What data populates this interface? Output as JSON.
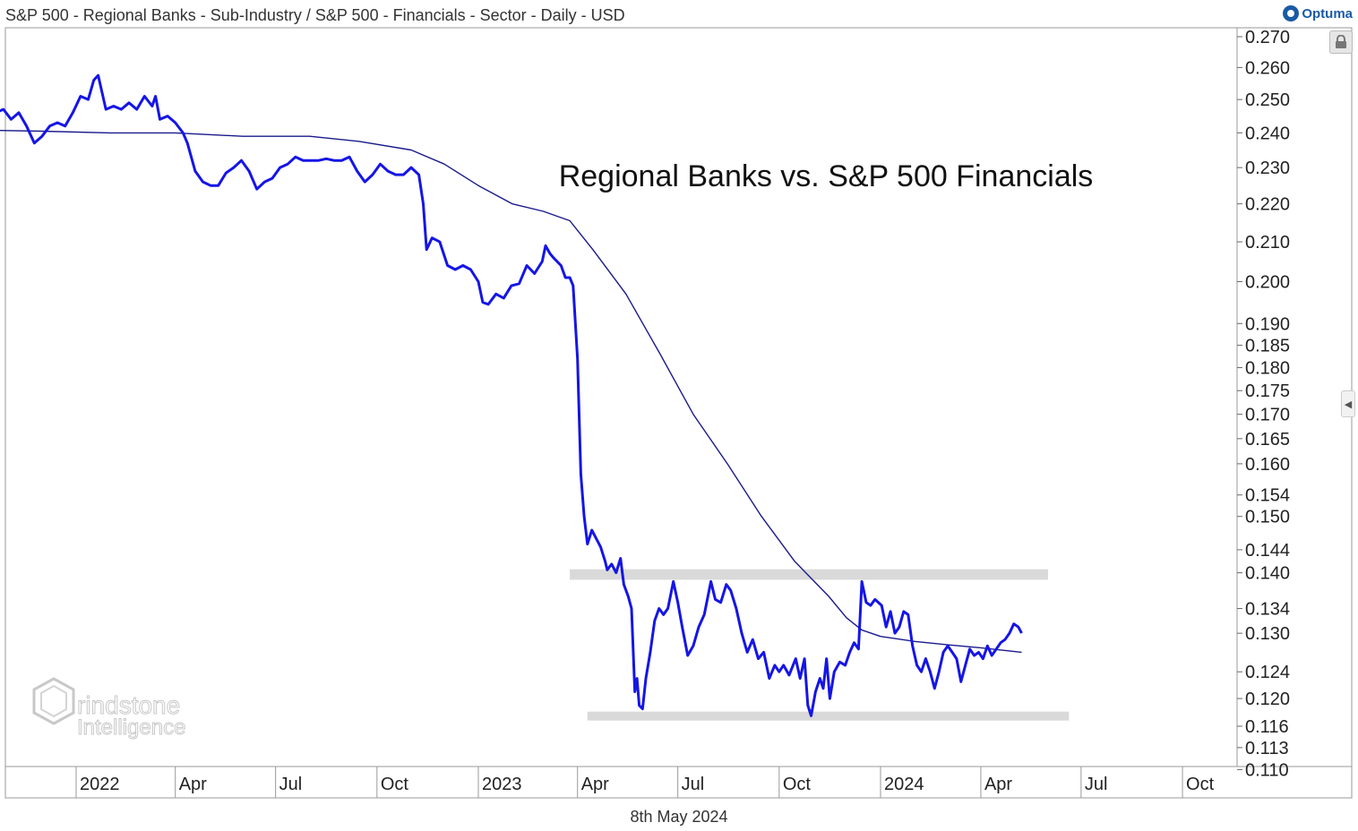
{
  "header": {
    "title": "S&P 500 - Regional Banks - Sub-Industry / S&P 500 - Financials - Sector - Daily - USD",
    "brand": "Optuma"
  },
  "footer": {
    "date": "8th May 2024"
  },
  "watermark": {
    "line1": "rindstone",
    "line2": "Intelligence"
  },
  "icons": {
    "lock": "lock-icon",
    "expand": "chevron-left-icon",
    "brand": "optuma-logo-icon",
    "watermark": "grindstone-hexagon-logo"
  },
  "colors": {
    "price": "#1515e6",
    "moving_average": "#1a1a8c",
    "zone": "#d9d9d9"
  },
  "chart_data": {
    "type": "line",
    "title": "Regional Banks vs. S&P 500 Financials",
    "y_scale": "log",
    "ylim": [
      0.11,
      0.272
    ],
    "xlim": [
      "2021-09-01",
      "2024-12-31"
    ],
    "x_ticks": [
      {
        "date": "2022-01-01",
        "label": "2022"
      },
      {
        "date": "2022-04-01",
        "label": "Apr"
      },
      {
        "date": "2022-07-01",
        "label": "Jul"
      },
      {
        "date": "2022-10-01",
        "label": "Oct"
      },
      {
        "date": "2023-01-01",
        "label": "2023"
      },
      {
        "date": "2023-04-01",
        "label": "Apr"
      },
      {
        "date": "2023-07-01",
        "label": "Jul"
      },
      {
        "date": "2023-10-01",
        "label": "Oct"
      },
      {
        "date": "2024-01-01",
        "label": "2024"
      },
      {
        "date": "2024-04-01",
        "label": "Apr"
      },
      {
        "date": "2024-07-01",
        "label": "Jul"
      },
      {
        "date": "2024-10-01",
        "label": "Oct"
      }
    ],
    "y_ticks": [
      {
        "value": 0.27,
        "label": "0.270"
      },
      {
        "value": 0.26,
        "label": "0.260"
      },
      {
        "value": 0.25,
        "label": "0.250"
      },
      {
        "value": 0.24,
        "label": "0.240"
      },
      {
        "value": 0.23,
        "label": "0.230"
      },
      {
        "value": 0.22,
        "label": "0.220"
      },
      {
        "value": 0.21,
        "label": "0.210"
      },
      {
        "value": 0.2,
        "label": "0.200"
      },
      {
        "value": 0.19,
        "label": "0.190"
      },
      {
        "value": 0.185,
        "label": "0.185"
      },
      {
        "value": 0.18,
        "label": "0.180"
      },
      {
        "value": 0.175,
        "label": "0.175"
      },
      {
        "value": 0.17,
        "label": "0.170"
      },
      {
        "value": 0.165,
        "label": "0.165"
      },
      {
        "value": 0.16,
        "label": "0.160"
      },
      {
        "value": 0.154,
        "label": "0.154"
      },
      {
        "value": 0.15,
        "label": "0.150"
      },
      {
        "value": 0.144,
        "label": "0.144"
      },
      {
        "value": 0.14,
        "label": "0.140"
      },
      {
        "value": 0.134,
        "label": "0.134"
      },
      {
        "value": 0.13,
        "label": "0.130"
      },
      {
        "value": 0.124,
        "label": "0.124"
      },
      {
        "value": 0.12,
        "label": "0.120"
      },
      {
        "value": 0.116,
        "label": "0.116"
      },
      {
        "value": 0.113,
        "label": "0.113"
      },
      {
        "value": 0.11,
        "label": "0.110"
      }
    ],
    "zones": [
      {
        "from": "2023-03-25",
        "to": "2024-06-01",
        "low": 0.1388,
        "high": 0.1406
      },
      {
        "from": "2023-04-10",
        "to": "2024-06-20",
        "low": 0.1169,
        "high": 0.1181
      }
    ],
    "series": [
      {
        "role": "ratio",
        "points": [
          [
            "2021-09-01",
            0.2465
          ],
          [
            "2021-09-08",
            0.248
          ],
          [
            "2021-09-15",
            0.247
          ],
          [
            "2021-09-22",
            0.249
          ],
          [
            "2021-09-29",
            0.2475
          ],
          [
            "2021-10-06",
            0.2488
          ],
          [
            "2021-10-13",
            0.248
          ],
          [
            "2021-10-20",
            0.246
          ],
          [
            "2021-10-27",
            0.247
          ],
          [
            "2021-11-03",
            0.244
          ],
          [
            "2021-11-10",
            0.246
          ],
          [
            "2021-11-17",
            0.242
          ],
          [
            "2021-11-24",
            0.237
          ],
          [
            "2021-12-01",
            0.239
          ],
          [
            "2021-12-08",
            0.242
          ],
          [
            "2021-12-15",
            0.243
          ],
          [
            "2021-12-22",
            0.242
          ],
          [
            "2021-12-29",
            0.246
          ],
          [
            "2022-01-05",
            0.251
          ],
          [
            "2022-01-12",
            0.25
          ],
          [
            "2022-01-17",
            0.256
          ],
          [
            "2022-01-21",
            0.2575
          ],
          [
            "2022-01-28",
            0.247
          ],
          [
            "2022-02-04",
            0.248
          ],
          [
            "2022-02-11",
            0.247
          ],
          [
            "2022-02-18",
            0.249
          ],
          [
            "2022-02-25",
            0.247
          ],
          [
            "2022-03-04",
            0.251
          ],
          [
            "2022-03-11",
            0.248
          ],
          [
            "2022-03-14",
            0.251
          ],
          [
            "2022-03-18",
            0.244
          ],
          [
            "2022-03-25",
            0.245
          ],
          [
            "2022-04-01",
            0.243
          ],
          [
            "2022-04-08",
            0.24
          ],
          [
            "2022-04-12",
            0.237
          ],
          [
            "2022-04-19",
            0.229
          ],
          [
            "2022-04-26",
            0.226
          ],
          [
            "2022-05-03",
            0.225
          ],
          [
            "2022-05-10",
            0.225
          ],
          [
            "2022-05-17",
            0.2285
          ],
          [
            "2022-05-24",
            0.23
          ],
          [
            "2022-05-31",
            0.232
          ],
          [
            "2022-06-07",
            0.229
          ],
          [
            "2022-06-14",
            0.224
          ],
          [
            "2022-06-21",
            0.226
          ],
          [
            "2022-06-28",
            0.227
          ],
          [
            "2022-07-05",
            0.23
          ],
          [
            "2022-07-12",
            0.231
          ],
          [
            "2022-07-19",
            0.233
          ],
          [
            "2022-07-26",
            0.232
          ],
          [
            "2022-08-02",
            0.232
          ],
          [
            "2022-08-09",
            0.232
          ],
          [
            "2022-08-16",
            0.2325
          ],
          [
            "2022-08-23",
            0.232
          ],
          [
            "2022-08-30",
            0.232
          ],
          [
            "2022-09-06",
            0.233
          ],
          [
            "2022-09-13",
            0.229
          ],
          [
            "2022-09-20",
            0.226
          ],
          [
            "2022-09-27",
            0.228
          ],
          [
            "2022-10-04",
            0.231
          ],
          [
            "2022-10-11",
            0.229
          ],
          [
            "2022-10-18",
            0.228
          ],
          [
            "2022-10-25",
            0.228
          ],
          [
            "2022-11-01",
            0.23
          ],
          [
            "2022-11-08",
            0.228
          ],
          [
            "2022-11-12",
            0.22
          ],
          [
            "2022-11-15",
            0.208
          ],
          [
            "2022-11-20",
            0.211
          ],
          [
            "2022-11-27",
            0.21
          ],
          [
            "2022-12-04",
            0.204
          ],
          [
            "2022-12-11",
            0.203
          ],
          [
            "2022-12-18",
            0.204
          ],
          [
            "2022-12-25",
            0.203
          ],
          [
            "2023-01-01",
            0.2
          ],
          [
            "2023-01-05",
            0.195
          ],
          [
            "2023-01-10",
            0.1945
          ],
          [
            "2023-01-17",
            0.197
          ],
          [
            "2023-01-24",
            0.196
          ],
          [
            "2023-01-31",
            0.199
          ],
          [
            "2023-02-07",
            0.1995
          ],
          [
            "2023-02-14",
            0.204
          ],
          [
            "2023-02-21",
            0.202
          ],
          [
            "2023-02-28",
            0.205
          ],
          [
            "2023-03-03",
            0.209
          ],
          [
            "2023-03-07",
            0.207
          ],
          [
            "2023-03-10",
            0.206
          ],
          [
            "2023-03-17",
            0.204
          ],
          [
            "2023-03-21",
            0.201
          ],
          [
            "2023-03-25",
            0.201
          ],
          [
            "2023-03-28",
            0.199
          ],
          [
            "2023-04-01",
            0.182
          ],
          [
            "2023-04-04",
            0.158
          ],
          [
            "2023-04-07",
            0.15
          ],
          [
            "2023-04-10",
            0.145
          ],
          [
            "2023-04-14",
            0.1475
          ],
          [
            "2023-04-18",
            0.146
          ],
          [
            "2023-04-22",
            0.1445
          ],
          [
            "2023-04-26",
            0.142
          ],
          [
            "2023-04-28",
            0.1405
          ],
          [
            "2023-05-02",
            0.1415
          ],
          [
            "2023-05-06",
            0.14
          ],
          [
            "2023-05-10",
            0.1425
          ],
          [
            "2023-05-13",
            0.138
          ],
          [
            "2023-05-17",
            0.136
          ],
          [
            "2023-05-20",
            0.134
          ],
          [
            "2023-05-23",
            0.121
          ],
          [
            "2023-05-25",
            0.123
          ],
          [
            "2023-05-27",
            0.119
          ],
          [
            "2023-05-30",
            0.1185
          ],
          [
            "2023-06-02",
            0.123
          ],
          [
            "2023-06-06",
            0.127
          ],
          [
            "2023-06-10",
            0.132
          ],
          [
            "2023-06-14",
            0.134
          ],
          [
            "2023-06-18",
            0.133
          ],
          [
            "2023-06-22",
            0.134
          ],
          [
            "2023-06-27",
            0.1385
          ],
          [
            "2023-07-01",
            0.135
          ],
          [
            "2023-07-05",
            0.131
          ],
          [
            "2023-07-10",
            0.1265
          ],
          [
            "2023-07-15",
            0.128
          ],
          [
            "2023-07-20",
            0.131
          ],
          [
            "2023-07-25",
            0.133
          ],
          [
            "2023-07-31",
            0.1385
          ],
          [
            "2023-08-04",
            0.1355
          ],
          [
            "2023-08-09",
            0.135
          ],
          [
            "2023-08-14",
            0.138
          ],
          [
            "2023-08-18",
            0.137
          ],
          [
            "2023-08-23",
            0.134
          ],
          [
            "2023-08-28",
            0.13
          ],
          [
            "2023-09-02",
            0.127
          ],
          [
            "2023-09-07",
            0.129
          ],
          [
            "2023-09-12",
            0.126
          ],
          [
            "2023-09-17",
            0.127
          ],
          [
            "2023-09-22",
            0.123
          ],
          [
            "2023-09-27",
            0.125
          ],
          [
            "2023-10-01",
            0.124
          ],
          [
            "2023-10-05",
            0.125
          ],
          [
            "2023-10-10",
            0.1235
          ],
          [
            "2023-10-16",
            0.126
          ],
          [
            "2023-10-20",
            0.123
          ],
          [
            "2023-10-24",
            0.126
          ],
          [
            "2023-10-27",
            0.119
          ],
          [
            "2023-10-30",
            0.1175
          ],
          [
            "2023-11-03",
            0.121
          ],
          [
            "2023-11-07",
            0.123
          ],
          [
            "2023-11-10",
            0.1215
          ],
          [
            "2023-11-13",
            0.126
          ],
          [
            "2023-11-16",
            0.12
          ],
          [
            "2023-11-20",
            0.124
          ],
          [
            "2023-11-25",
            0.1255
          ],
          [
            "2023-11-30",
            0.125
          ],
          [
            "2023-12-04",
            0.127
          ],
          [
            "2023-12-08",
            0.1285
          ],
          [
            "2023-12-12",
            0.1275
          ],
          [
            "2023-12-15",
            0.1385
          ],
          [
            "2023-12-19",
            0.135
          ],
          [
            "2023-12-23",
            0.1345
          ],
          [
            "2023-12-27",
            0.1355
          ],
          [
            "2024-01-02",
            0.1345
          ],
          [
            "2024-01-06",
            0.131
          ],
          [
            "2024-01-10",
            0.1335
          ],
          [
            "2024-01-14",
            0.13
          ],
          [
            "2024-01-18",
            0.131
          ],
          [
            "2024-01-22",
            0.1335
          ],
          [
            "2024-01-26",
            0.133
          ],
          [
            "2024-01-30",
            0.128
          ],
          [
            "2024-02-03",
            0.125
          ],
          [
            "2024-02-07",
            0.124
          ],
          [
            "2024-02-11",
            0.126
          ],
          [
            "2024-02-15",
            0.124
          ],
          [
            "2024-02-19",
            0.1215
          ],
          [
            "2024-02-23",
            0.124
          ],
          [
            "2024-02-27",
            0.127
          ],
          [
            "2024-03-02",
            0.128
          ],
          [
            "2024-03-06",
            0.127
          ],
          [
            "2024-03-10",
            0.126
          ],
          [
            "2024-03-14",
            0.1225
          ],
          [
            "2024-03-18",
            0.125
          ],
          [
            "2024-03-22",
            0.1275
          ],
          [
            "2024-03-26",
            0.1265
          ],
          [
            "2024-03-30",
            0.127
          ],
          [
            "2024-04-03",
            0.126
          ],
          [
            "2024-04-07",
            0.128
          ],
          [
            "2024-04-11",
            0.1265
          ],
          [
            "2024-04-15",
            0.1275
          ],
          [
            "2024-04-19",
            0.1285
          ],
          [
            "2024-04-23",
            0.129
          ],
          [
            "2024-04-27",
            0.13
          ],
          [
            "2024-05-01",
            0.1315
          ],
          [
            "2024-05-05",
            0.131
          ],
          [
            "2024-05-08",
            0.13
          ]
        ]
      },
      {
        "role": "moving-average",
        "points": [
          [
            "2021-09-01",
            0.241
          ],
          [
            "2021-12-01",
            0.2405
          ],
          [
            "2022-02-01",
            0.24
          ],
          [
            "2022-04-01",
            0.24
          ],
          [
            "2022-06-01",
            0.239
          ],
          [
            "2022-08-01",
            0.239
          ],
          [
            "2022-09-15",
            0.2375
          ],
          [
            "2022-11-01",
            0.235
          ],
          [
            "2022-12-01",
            0.231
          ],
          [
            "2023-01-01",
            0.225
          ],
          [
            "2023-02-01",
            0.22
          ],
          [
            "2023-03-01",
            0.218
          ],
          [
            "2023-03-25",
            0.2155
          ],
          [
            "2023-04-15",
            0.208
          ],
          [
            "2023-05-15",
            0.197
          ],
          [
            "2023-06-15",
            0.183
          ],
          [
            "2023-07-15",
            0.17
          ],
          [
            "2023-08-15",
            0.16
          ],
          [
            "2023-09-15",
            0.15
          ],
          [
            "2023-10-15",
            0.142
          ],
          [
            "2023-11-15",
            0.136
          ],
          [
            "2023-12-01",
            0.1325
          ],
          [
            "2023-12-15",
            0.1305
          ],
          [
            "2024-01-01",
            0.1295
          ],
          [
            "2024-02-01",
            0.1287
          ],
          [
            "2024-03-01",
            0.1282
          ],
          [
            "2024-04-01",
            0.1277
          ],
          [
            "2024-05-08",
            0.127
          ]
        ]
      }
    ]
  }
}
